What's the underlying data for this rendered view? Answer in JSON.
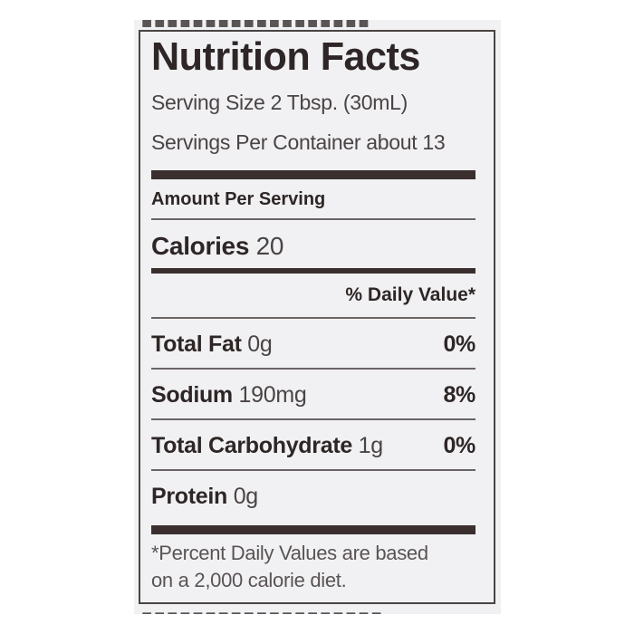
{
  "label": {
    "title": "Nutrition Facts",
    "serving_size": "Serving Size 2 Tbsp. (30mL)",
    "servings_per_container": "Servings Per Container about 13",
    "amount_per_serving": "Amount Per Serving",
    "calories_label": "Calories",
    "calories_value": "20",
    "daily_value_header": "% Daily Value*",
    "nutrients": [
      {
        "name": "Total Fat",
        "amount": "0g",
        "dv": "0%"
      },
      {
        "name": "Sodium",
        "amount": "190mg",
        "dv": "8%"
      },
      {
        "name": "Total Carbohydrate",
        "amount": "1g",
        "dv": "0%"
      },
      {
        "name": "Protein",
        "amount": "0g",
        "dv": ""
      }
    ],
    "footnote_line1": "*Percent Daily Values are based",
    "footnote_line2": "on a 2,000 calorie diet."
  }
}
